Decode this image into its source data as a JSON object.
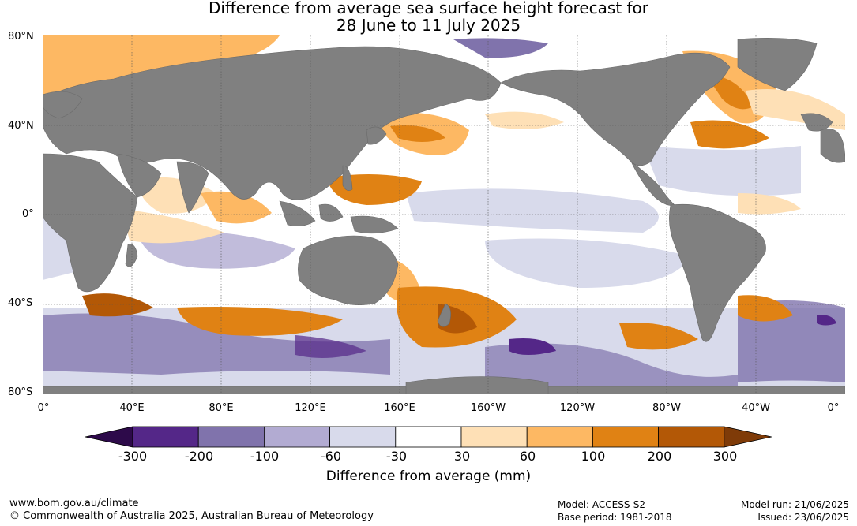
{
  "title_line1": "Difference from average sea surface height forecast for",
  "title_line2": "28 June to 11 July 2025",
  "lat_labels": [
    "80°N",
    "40°N",
    "0°",
    "40°S",
    "80°S"
  ],
  "lon_labels": [
    "0°",
    "40°E",
    "80°E",
    "120°E",
    "160°E",
    "160°W",
    "120°W",
    "80°W",
    "40°W",
    "0°"
  ],
  "colorbar": {
    "ticks": [
      "-300",
      "-200",
      "-100",
      "-60",
      "-30",
      "30",
      "60",
      "100",
      "200",
      "300"
    ],
    "colors": [
      "#2d0a4a",
      "#542788",
      "#8073ac",
      "#b2abd2",
      "#d8daeb",
      "#ffffff",
      "#fee0b6",
      "#fdb863",
      "#e08214",
      "#b35806",
      "#7f3b08"
    ],
    "title": "Difference from average (mm)"
  },
  "colors": {
    "land": "#808080",
    "ocean_neutral": "#ffffff",
    "grid": "#555555"
  },
  "footer": {
    "url": "www.bom.gov.au/climate",
    "copyright": "© Commonwealth of Australia 2025, Australian Bureau of Meteorology",
    "model": "Model: ACCESS-S2",
    "base_period": "Base period: 1981-2018",
    "model_run": "Model run: 21/06/2025",
    "issued": "Issued: 23/06/2025"
  }
}
